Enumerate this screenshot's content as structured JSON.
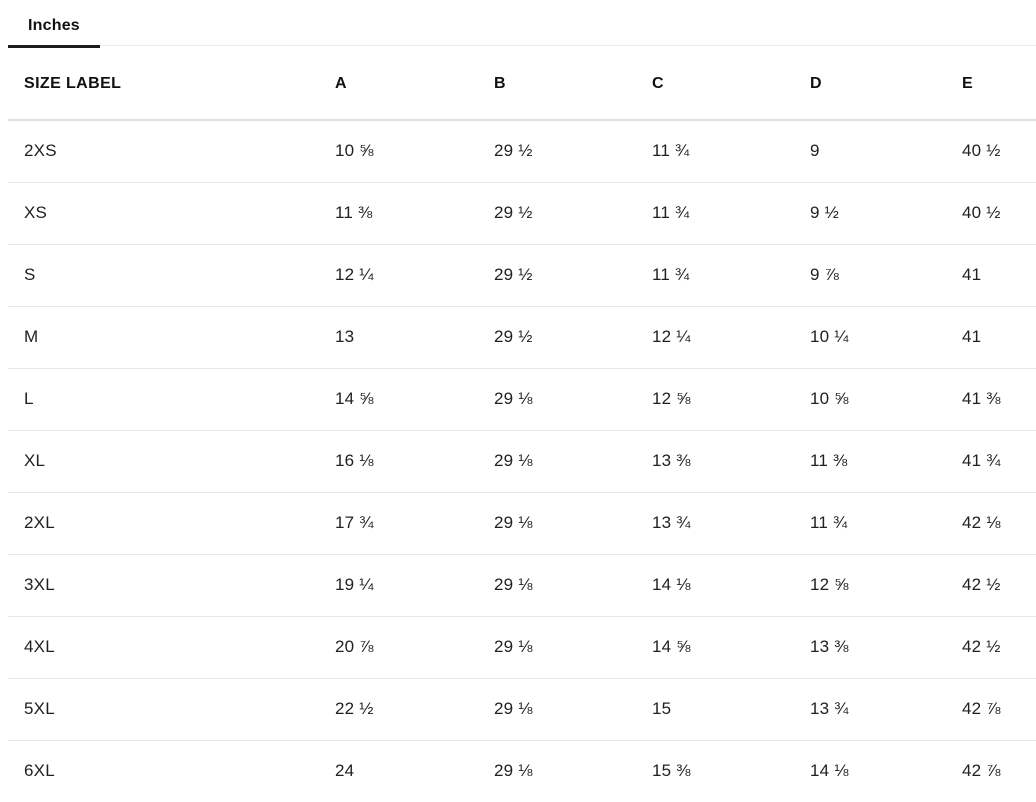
{
  "tabs": [
    {
      "label": "Inches",
      "active": true
    }
  ],
  "table": {
    "columns": [
      "SIZE LABEL",
      "A",
      "B",
      "C",
      "D",
      "E"
    ],
    "rows": [
      {
        "size": "2XS",
        "values": [
          "10 ⅝",
          "29 ½",
          "11 ¾",
          "9",
          "40 ½"
        ]
      },
      {
        "size": "XS",
        "values": [
          "11 ⅜",
          "29 ½",
          "11 ¾",
          "9 ½",
          "40 ½"
        ]
      },
      {
        "size": "S",
        "values": [
          "12 ¼",
          "29 ½",
          "11 ¾",
          "9 ⅞",
          "41"
        ]
      },
      {
        "size": "M",
        "values": [
          "13",
          "29 ½",
          "12 ¼",
          "10 ¼",
          "41"
        ]
      },
      {
        "size": "L",
        "values": [
          "14 ⅝",
          "29 ⅛",
          "12 ⅝",
          "10 ⅝",
          "41 ⅜"
        ]
      },
      {
        "size": "XL",
        "values": [
          "16 ⅛",
          "29 ⅛",
          "13 ⅜",
          "11 ⅜",
          "41 ¾"
        ]
      },
      {
        "size": "2XL",
        "values": [
          "17 ¾",
          "29 ⅛",
          "13 ¾",
          "11 ¾",
          "42 ⅛"
        ]
      },
      {
        "size": "3XL",
        "values": [
          "19 ¼",
          "29 ⅛",
          "14 ⅛",
          "12 ⅝",
          "42 ½"
        ]
      },
      {
        "size": "4XL",
        "values": [
          "20 ⅞",
          "29 ⅛",
          "14 ⅝",
          "13 ⅜",
          "42 ½"
        ]
      },
      {
        "size": "5XL",
        "values": [
          "22 ½",
          "29 ⅛",
          "15",
          "13 ¾",
          "42 ⅞"
        ]
      },
      {
        "size": "6XL",
        "values": [
          "24",
          "29 ⅛",
          "15 ⅜",
          "14 ⅛",
          "42 ⅞"
        ]
      }
    ]
  },
  "colors": {
    "text": "#212121",
    "heading": "#111111",
    "divider": "#e7e7e7",
    "header_divider": "#e0e0e0",
    "active_tab_underline": "#1c1c1c",
    "tab_track": "#ececec",
    "background": "#ffffff"
  }
}
